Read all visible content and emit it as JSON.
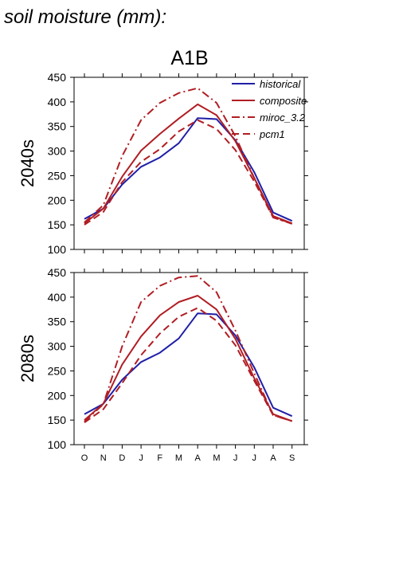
{
  "figure_title": "soil moisture (mm):",
  "scenario_title": "A1B",
  "colors": {
    "historical": "#1f1fa8",
    "projection": "#b01e24",
    "axis": "#000000"
  },
  "chart_data": [
    {
      "type": "line",
      "row_label": "2040s",
      "categories": [
        "O",
        "N",
        "D",
        "J",
        "F",
        "M",
        "A",
        "M",
        "J",
        "J",
        "A",
        "S"
      ],
      "ylim": [
        100,
        450
      ],
      "yticks": [
        100,
        150,
        200,
        250,
        300,
        350,
        400,
        450
      ],
      "grid": false,
      "legend": "top-right",
      "series": [
        {
          "name": "historical",
          "style": "solid",
          "color": "#1f1fa8",
          "values": [
            162,
            183,
            232,
            268,
            287,
            316,
            367,
            365,
            322,
            257,
            175,
            158
          ]
        },
        {
          "name": "composite",
          "style": "solid",
          "color": "#b01e24",
          "values": [
            153,
            183,
            248,
            301,
            335,
            366,
            395,
            373,
            320,
            245,
            168,
            153
          ]
        },
        {
          "name": "miroc_3.2",
          "style": "dashdot",
          "color": "#b01e24",
          "values": [
            155,
            190,
            290,
            363,
            398,
            418,
            428,
            398,
            330,
            245,
            165,
            152
          ]
        },
        {
          "name": "pcm1",
          "style": "dashed",
          "color": "#b01e24",
          "values": [
            150,
            176,
            237,
            278,
            304,
            340,
            363,
            345,
            302,
            238,
            165,
            153
          ]
        }
      ]
    },
    {
      "type": "line",
      "row_label": "2080s",
      "categories": [
        "O",
        "N",
        "D",
        "J",
        "F",
        "M",
        "A",
        "M",
        "J",
        "J",
        "A",
        "S"
      ],
      "ylim": [
        100,
        450
      ],
      "yticks": [
        100,
        150,
        200,
        250,
        300,
        350,
        400,
        450
      ],
      "grid": false,
      "legend": "none",
      "series": [
        {
          "name": "historical",
          "style": "solid",
          "color": "#1f1fa8",
          "values": [
            162,
            183,
            232,
            268,
            287,
            316,
            367,
            365,
            322,
            257,
            175,
            158
          ]
        },
        {
          "name": "composite",
          "style": "solid",
          "color": "#b01e24",
          "values": [
            150,
            183,
            263,
            320,
            363,
            390,
            403,
            375,
            315,
            235,
            162,
            148
          ]
        },
        {
          "name": "miroc_3.2",
          "style": "dashdot",
          "color": "#b01e24",
          "values": [
            147,
            182,
            300,
            390,
            423,
            440,
            443,
            410,
            332,
            245,
            160,
            148
          ]
        },
        {
          "name": "pcm1",
          "style": "dashed",
          "color": "#b01e24",
          "values": [
            145,
            172,
            225,
            282,
            326,
            360,
            378,
            352,
            302,
            230,
            160,
            148
          ]
        }
      ]
    }
  ]
}
